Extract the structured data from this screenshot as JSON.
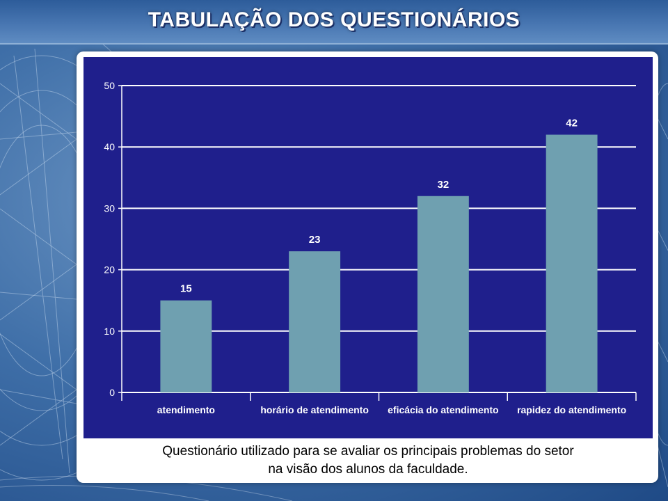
{
  "header": {
    "title": "TABULAÇÃO DOS QUESTIONÁRIOS"
  },
  "caption": {
    "line1": "Questionário utilizado para se avaliar os principais problemas do setor",
    "line2": "na visão dos alunos da faculdade."
  },
  "colors": {
    "chart_bg": "#1f1f8c",
    "bar": "#6fa0b0",
    "grid": "#ffffff",
    "text": "#ffffff"
  },
  "chart_data": {
    "type": "bar",
    "title": "",
    "xlabel": "",
    "ylabel": "",
    "categories": [
      "atendimento",
      "horário de atendimento",
      "eficácia do  atendimento",
      "rapidez do  atendimento"
    ],
    "values": [
      15,
      23,
      32,
      42
    ],
    "ylim": [
      0,
      50
    ],
    "yticks": [
      0,
      10,
      20,
      30,
      40,
      50
    ],
    "grid": true,
    "data_labels": true
  }
}
